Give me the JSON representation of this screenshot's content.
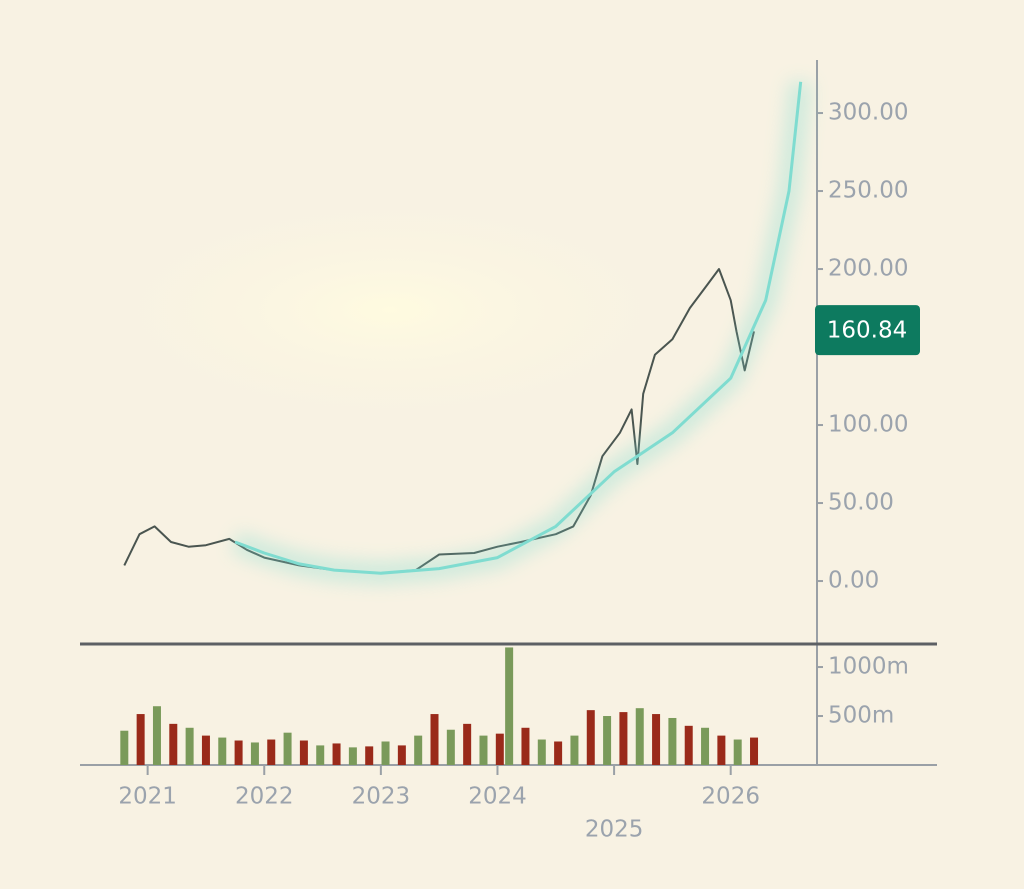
{
  "chart_data": [
    {
      "type": "line",
      "xlim": [
        2020.42,
        2026.74
      ],
      "ylim": [
        -41,
        334
      ],
      "yticks": [
        {
          "value": 0,
          "label": "0.00"
        },
        {
          "value": 50,
          "label": "50.00"
        },
        {
          "value": 100,
          "label": "100.00"
        },
        {
          "value": 200,
          "label": "200.00"
        },
        {
          "value": 250,
          "label": "250.00"
        },
        {
          "value": 300,
          "label": "300.00"
        }
      ],
      "last_price": 160.84,
      "last_price_color": "#0d7a5f",
      "series": [
        {
          "color": "#4a5550",
          "x": [
            2020.8,
            2020.93,
            2021.06,
            2021.2,
            2021.35,
            2021.5,
            2021.7,
            2021.85,
            2022.0,
            2022.3,
            2022.6,
            2023.0,
            2023.3,
            2023.5,
            2023.8,
            2024.0,
            2024.2,
            2024.5,
            2024.65,
            2024.8,
            2024.9,
            2025.05,
            2025.15,
            2025.2,
            2025.25,
            2025.35,
            2025.5,
            2025.65,
            2025.8,
            2025.9,
            2026.0,
            2026.05,
            2026.12,
            2026.2
          ],
          "values": [
            10,
            30,
            35,
            25,
            22,
            23,
            27,
            20,
            15,
            10,
            7,
            5,
            7,
            17,
            18,
            22,
            25,
            30,
            35,
            55,
            80,
            95,
            110,
            75,
            120,
            145,
            155,
            175,
            190,
            200,
            180,
            160,
            135,
            160
          ]
        },
        {
          "color": "#7fdcd0",
          "x": [
            2021.75,
            2022.0,
            2022.3,
            2022.6,
            2023.0,
            2023.5,
            2024.0,
            2024.5,
            2025.0,
            2025.5,
            2026.0,
            2026.3,
            2026.5,
            2026.6
          ],
          "values": [
            25,
            18,
            11,
            7,
            5,
            8,
            15,
            35,
            70,
            95,
            130,
            180,
            250,
            320
          ]
        }
      ]
    },
    {
      "type": "bar",
      "xlim": [
        2020.42,
        2026.74
      ],
      "ylim": [
        0,
        1225
      ],
      "yticks": [
        {
          "value": 500,
          "label": "500m"
        },
        {
          "value": 1000,
          "label": "1000m"
        }
      ],
      "xticks": [
        2021,
        2022,
        2023,
        2024,
        2025,
        2026
      ],
      "x": [
        2020.8,
        2020.94,
        2021.08,
        2021.22,
        2021.36,
        2021.5,
        2021.64,
        2021.78,
        2021.92,
        2022.06,
        2022.2,
        2022.34,
        2022.48,
        2022.62,
        2022.76,
        2022.9,
        2023.04,
        2023.18,
        2023.32,
        2023.46,
        2023.6,
        2023.74,
        2023.88,
        2024.02,
        2024.1,
        2024.24,
        2024.38,
        2024.52,
        2024.66,
        2024.8,
        2024.94,
        2025.08,
        2025.22,
        2025.36,
        2025.5,
        2025.64,
        2025.78,
        2025.92,
        2026.06,
        2026.2
      ],
      "values": [
        350,
        520,
        600,
        420,
        380,
        300,
        280,
        250,
        230,
        260,
        330,
        250,
        200,
        220,
        180,
        190,
        240,
        200,
        300,
        520,
        360,
        420,
        300,
        320,
        1200,
        380,
        260,
        240,
        300,
        560,
        500,
        540,
        580,
        520,
        480,
        400,
        380,
        300,
        260,
        280
      ],
      "colors": [
        "#7a9a5a",
        "#9a2a1a",
        "#7a9a5a",
        "#9a2a1a",
        "#7a9a5a",
        "#9a2a1a",
        "#7a9a5a",
        "#9a2a1a",
        "#7a9a5a",
        "#9a2a1a",
        "#7a9a5a",
        "#9a2a1a",
        "#7a9a5a",
        "#9a2a1a",
        "#7a9a5a",
        "#9a2a1a",
        "#7a9a5a",
        "#9a2a1a",
        "#7a9a5a",
        "#9a2a1a",
        "#7a9a5a",
        "#9a2a1a",
        "#7a9a5a",
        "#9a2a1a",
        "#7a9a5a",
        "#9a2a1a",
        "#7a9a5a",
        "#9a2a1a",
        "#7a9a5a",
        "#9a2a1a",
        "#7a9a5a",
        "#9a2a1a",
        "#7a9a5a",
        "#9a2a1a",
        "#7a9a5a",
        "#9a2a1a",
        "#7a9a5a",
        "#9a2a1a",
        "#7a9a5a",
        "#9a2a1a"
      ]
    }
  ]
}
